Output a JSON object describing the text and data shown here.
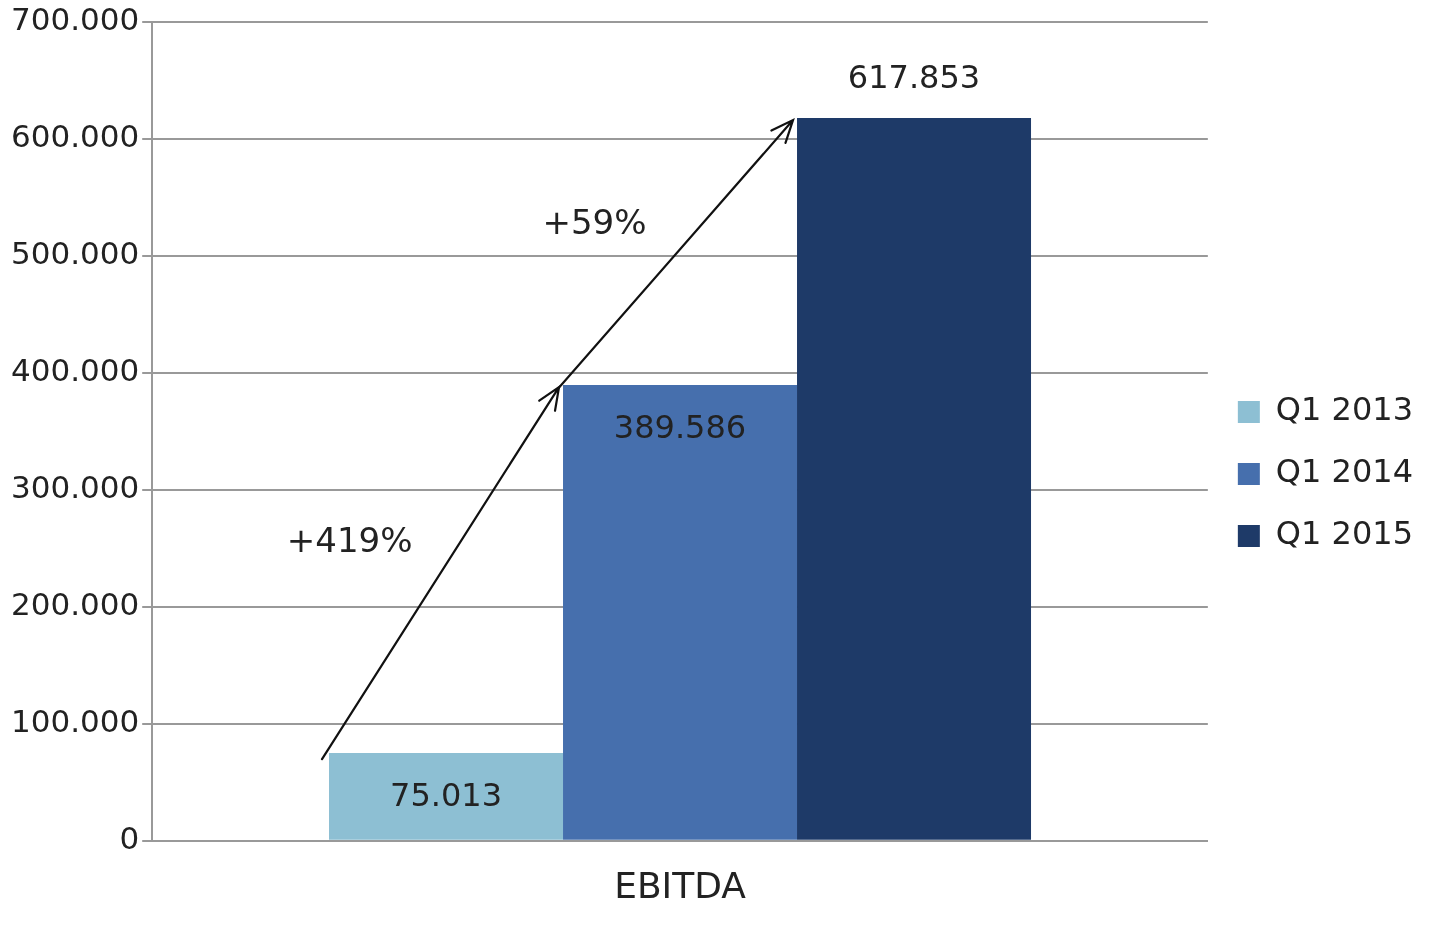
{
  "chart_data": {
    "type": "bar",
    "categories": [
      "EBITDA"
    ],
    "series": [
      {
        "name": "Q1 2013",
        "color": "#8dbfd3",
        "values": [
          75013
        ],
        "value_labels": [
          "75.013"
        ]
      },
      {
        "name": "Q1 2014",
        "color": "#466fad",
        "values": [
          389586
        ],
        "value_labels": [
          "389.586"
        ]
      },
      {
        "name": "Q1 2015",
        "color": "#1e3a68",
        "values": [
          617853
        ],
        "value_labels": [
          "617.853"
        ]
      }
    ],
    "ylim": [
      0,
      700000
    ],
    "yticks": [
      {
        "value": 0,
        "label": "0"
      },
      {
        "value": 100000,
        "label": "100.000"
      },
      {
        "value": 200000,
        "label": "200.000"
      },
      {
        "value": 300000,
        "label": "300.000"
      },
      {
        "value": 400000,
        "label": "400.000"
      },
      {
        "value": 500000,
        "label": "500.000"
      },
      {
        "value": 600000,
        "label": "600.000"
      },
      {
        "value": 700000,
        "label": "700.000"
      }
    ],
    "annotations": [
      "+419%",
      "+59%"
    ],
    "grid": "y",
    "legend": "right"
  }
}
